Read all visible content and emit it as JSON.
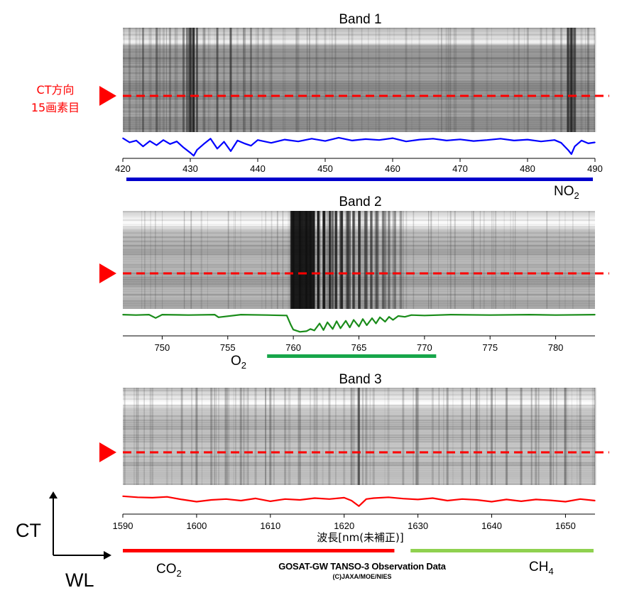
{
  "chart_data": [
    {
      "type": "line",
      "title": "Band 1",
      "xlabel": "",
      "xlim": [
        420,
        490
      ],
      "xticks": [
        420,
        430,
        440,
        450,
        460,
        470,
        480,
        490
      ],
      "grid": false,
      "series": [
        {
          "color": "#0000ff",
          "x": [
            420,
            421,
            422,
            423,
            424,
            425,
            426,
            427,
            428,
            429,
            430,
            430.5,
            431,
            432,
            433,
            434,
            435,
            436,
            437,
            438,
            439,
            440,
            442,
            444,
            446,
            448,
            450,
            452,
            454,
            456,
            458,
            460,
            462,
            464,
            466,
            468,
            470,
            472,
            474,
            476,
            478,
            480,
            482,
            484,
            485,
            486,
            486.5,
            487,
            488,
            489,
            490
          ],
          "y": [
            0.8,
            0.62,
            0.7,
            0.45,
            0.68,
            0.5,
            0.72,
            0.55,
            0.66,
            0.4,
            0.18,
            0.05,
            0.3,
            0.55,
            0.78,
            0.35,
            0.65,
            0.25,
            0.7,
            0.58,
            0.48,
            0.72,
            0.6,
            0.74,
            0.66,
            0.78,
            0.68,
            0.82,
            0.7,
            0.76,
            0.72,
            0.8,
            0.66,
            0.74,
            0.78,
            0.7,
            0.75,
            0.68,
            0.72,
            0.78,
            0.7,
            0.74,
            0.66,
            0.72,
            0.6,
            0.3,
            0.12,
            0.45,
            0.7,
            0.58,
            0.62
          ]
        }
      ],
      "ct_label": [
        "CT方向",
        "15画素目"
      ],
      "molecules": [
        {
          "label": "NO",
          "sub": "2",
          "range": [
            420,
            490
          ],
          "color": "#0000cc"
        }
      ]
    },
    {
      "type": "line",
      "title": "Band 2",
      "xlabel": "",
      "xlim": [
        747,
        783
      ],
      "xticks": [
        750,
        755,
        760,
        765,
        770,
        775,
        780
      ],
      "grid": false,
      "series": [
        {
          "color": "#1a8c1a",
          "x": [
            747,
            748,
            749,
            749.5,
            750,
            752,
            754,
            754.3,
            756,
            758,
            759.5,
            759.8,
            760,
            760.5,
            761,
            761.3,
            761.6,
            762,
            762.3,
            762.6,
            763,
            763.3,
            763.6,
            764,
            764.3,
            764.6,
            765,
            765.3,
            765.6,
            766,
            766.3,
            766.6,
            767,
            767.3,
            767.6,
            768,
            768.5,
            769,
            770,
            772,
            775,
            778,
            780,
            783
          ],
          "y": [
            0.9,
            0.88,
            0.9,
            0.75,
            0.9,
            0.88,
            0.9,
            0.78,
            0.9,
            0.88,
            0.86,
            0.45,
            0.22,
            0.12,
            0.15,
            0.25,
            0.18,
            0.5,
            0.2,
            0.55,
            0.25,
            0.6,
            0.28,
            0.62,
            0.32,
            0.66,
            0.36,
            0.7,
            0.42,
            0.74,
            0.5,
            0.78,
            0.58,
            0.8,
            0.66,
            0.84,
            0.8,
            0.88,
            0.86,
            0.9,
            0.88,
            0.9,
            0.88,
            0.9
          ]
        }
      ],
      "molecules": [
        {
          "label": "O",
          "sub": "2",
          "range": [
            758,
            771
          ],
          "color": "#17a64a"
        }
      ]
    },
    {
      "type": "line",
      "title": "Band 3",
      "xlabel": "波長[nm(未補正)]",
      "xlim": [
        1590,
        1654
      ],
      "xticks": [
        1590,
        1600,
        1610,
        1620,
        1630,
        1640,
        1650
      ],
      "grid": false,
      "series": [
        {
          "color": "#ff0000",
          "x": [
            1590,
            1592,
            1594,
            1596,
            1598,
            1600,
            1602,
            1604,
            1606,
            1608,
            1610,
            1612,
            1614,
            1616,
            1618,
            1620,
            1621,
            1622,
            1623,
            1624,
            1626,
            1628,
            1630,
            1632,
            1634,
            1636,
            1638,
            1640,
            1642,
            1644,
            1646,
            1648,
            1650,
            1652,
            1654
          ],
          "y": [
            0.75,
            0.7,
            0.68,
            0.72,
            0.6,
            0.5,
            0.58,
            0.62,
            0.55,
            0.65,
            0.52,
            0.62,
            0.58,
            0.66,
            0.62,
            0.68,
            0.55,
            0.3,
            0.62,
            0.66,
            0.7,
            0.64,
            0.6,
            0.66,
            0.55,
            0.62,
            0.58,
            0.5,
            0.6,
            0.52,
            0.6,
            0.56,
            0.5,
            0.62,
            0.55
          ]
        }
      ],
      "molecules": [
        {
          "label": "CO",
          "sub": "2",
          "range": [
            1590,
            1627
          ],
          "color": "#ff0000"
        },
        {
          "label": "CH",
          "sub": "4",
          "range": [
            1629,
            1654
          ],
          "color": "#8fd14f"
        }
      ]
    }
  ],
  "axes_legend": {
    "vertical": "CT",
    "horizontal": "WL"
  },
  "credit": {
    "line1": "GOSAT-GW TANSO-3 Observation Data",
    "line2": "(C)JAXA/MOE/NIES"
  }
}
